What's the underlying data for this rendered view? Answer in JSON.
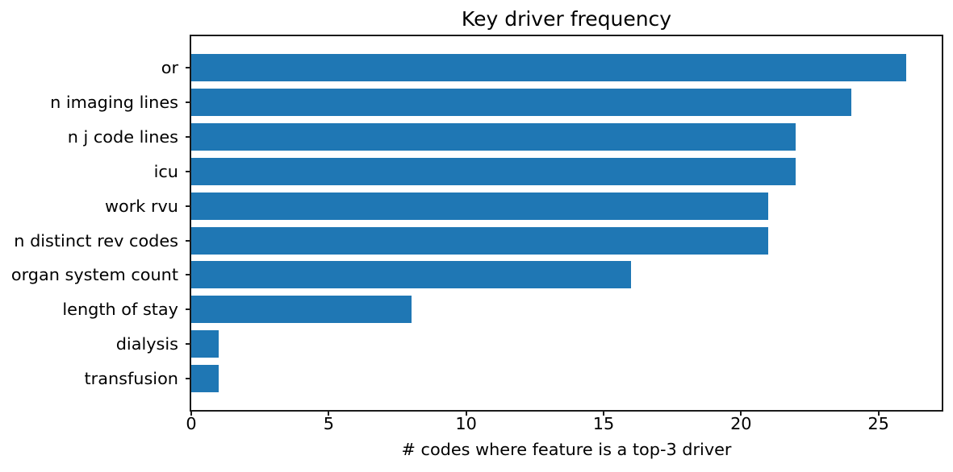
{
  "figure": {
    "background": "#ffffff"
  },
  "chart_data": {
    "type": "bar",
    "orientation": "horizontal",
    "title": "Key driver frequency",
    "xlabel": "# codes where feature is a top-3 driver",
    "ylabel": "",
    "categories": [
      "or",
      "n imaging lines",
      "n j code lines",
      "icu",
      "work rvu",
      "n distinct rev codes",
      "organ system count",
      "length of stay",
      "dialysis",
      "transfusion"
    ],
    "values": [
      26,
      24,
      22,
      22,
      21,
      21,
      16,
      8,
      1,
      1
    ],
    "xticks": [
      0,
      5,
      10,
      15,
      20,
      25
    ],
    "xlim": [
      0,
      27.3
    ],
    "bar_color": "#1f77b4",
    "axis_color": "#000000",
    "text_color": "#000000",
    "grid": false,
    "legend_position": "none"
  }
}
